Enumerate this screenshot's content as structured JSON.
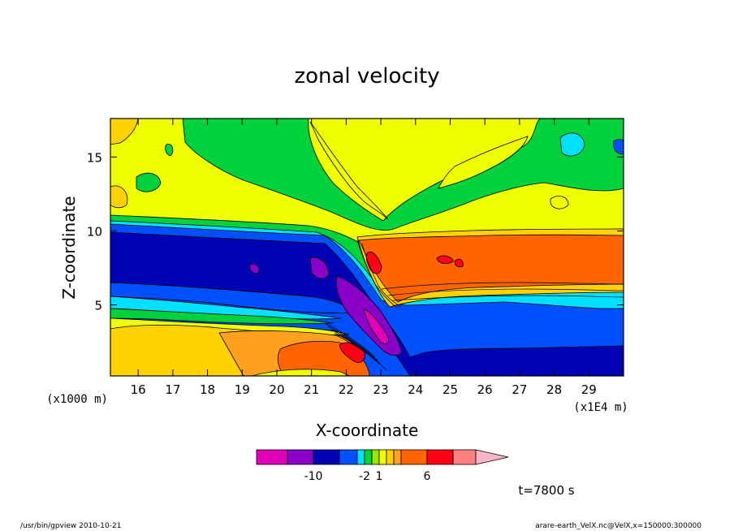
{
  "chart_data": {
    "type": "heatmap",
    "title": "zonal velocity",
    "xlabel": "X-coordinate",
    "ylabel": "Z-coordinate",
    "x_unit_label": "(x1E4 m)",
    "y_unit_label": "(x1000 m)",
    "xlim": [
      15.2,
      30.0
    ],
    "ylim": [
      0.2,
      17.6
    ],
    "x_ticks": [
      "16",
      "17",
      "18",
      "19",
      "20",
      "21",
      "22",
      "23",
      "24",
      "25",
      "26",
      "27",
      "28",
      "29"
    ],
    "x_tick_values": [
      16,
      17,
      18,
      19,
      20,
      21,
      22,
      23,
      24,
      25,
      26,
      27,
      28,
      29
    ],
    "y_ticks": [
      "5",
      "10",
      "15"
    ],
    "y_tick_values": [
      5,
      10,
      15
    ],
    "colorbar": {
      "colors": [
        "#e000b8",
        "#8a00c8",
        "#0000b4",
        "#0050ff",
        "#00e0ff",
        "#00d23c",
        "#96e600",
        "#f0ff00",
        "#ffd200",
        "#ffa01e",
        "#ff6400",
        "#ff0014",
        "#ff8080",
        "#ffb4c8"
      ],
      "tick_labels": [
        {
          "label": "-10",
          "after_index": 1
        },
        {
          "label": "-2",
          "after_index": 4
        },
        {
          "label": "1",
          "after_index": 6
        },
        {
          "label": "6",
          "after_index": 10
        }
      ]
    },
    "time_label": "t=7800 s"
  },
  "footer": {
    "left": "/usr/bin/gpview   2010-10-21",
    "right": "arare-earth_VelX.nc@VelX,x=150000:300000"
  }
}
